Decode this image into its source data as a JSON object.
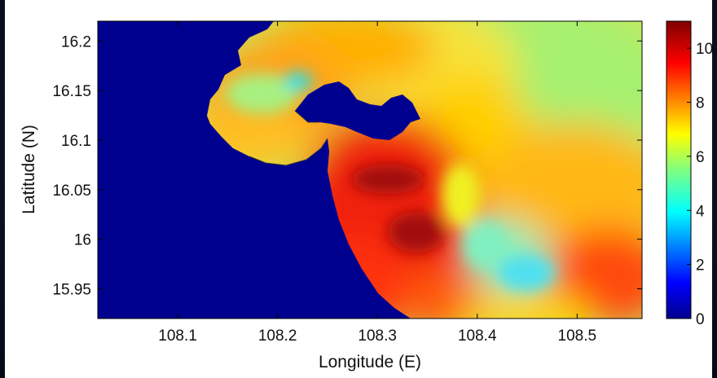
{
  "chart_data": {
    "type": "heatmap",
    "title": "",
    "xlabel": "Longitude (E)",
    "ylabel": "Latitude (N)",
    "xlim": [
      108.02,
      108.565
    ],
    "ylim": [
      15.92,
      16.22
    ],
    "x_ticks": [
      {
        "value": 108.1,
        "label": "108.1"
      },
      {
        "value": 108.2,
        "label": "108.2"
      },
      {
        "value": 108.3,
        "label": "108.3"
      },
      {
        "value": 108.4,
        "label": "108.4"
      },
      {
        "value": 108.5,
        "label": "108.5"
      }
    ],
    "y_ticks": [
      {
        "value": 16.2,
        "label": "16.2"
      },
      {
        "value": 16.15,
        "label": "16.15"
      },
      {
        "value": 16.1,
        "label": "16.1"
      },
      {
        "value": 16.05,
        "label": "16.05"
      },
      {
        "value": 16.0,
        "label": "16"
      },
      {
        "value": 15.95,
        "label": "15.95"
      }
    ],
    "colorbar": {
      "range": [
        0,
        11
      ],
      "colormap": "jet",
      "ticks": [
        {
          "value": 0,
          "label": "0"
        },
        {
          "value": 2,
          "label": "2"
        },
        {
          "value": 4,
          "label": "4"
        },
        {
          "value": 6,
          "label": "6"
        },
        {
          "value": 8,
          "label": "8"
        },
        {
          "value": 10,
          "label": "10"
        }
      ]
    },
    "land_value": 0,
    "field_description_regions": [
      {
        "region": "offshore north-east",
        "approx_value": 6.2
      },
      {
        "region": "nearshore south",
        "approx_value": 9.5
      },
      {
        "region": "bay interior",
        "approx_value": 6.5
      },
      {
        "region": "peak near 108.32E 16.05N",
        "approx_value": 10.6
      }
    ]
  }
}
